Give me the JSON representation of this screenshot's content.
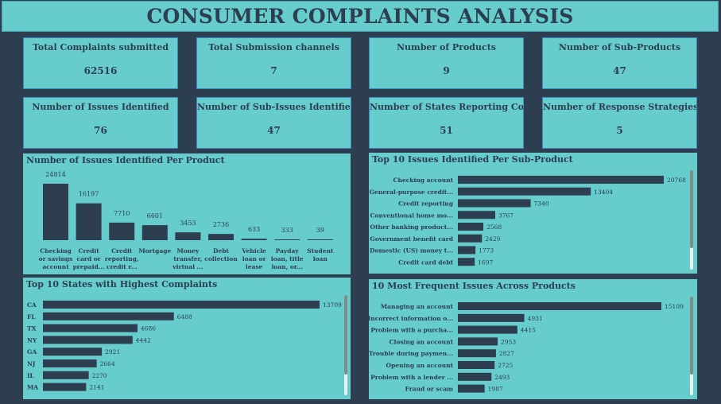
{
  "title": "CONSUMER COMPLAINTS ANALYSIS",
  "colors": {
    "background": "#2d3e50",
    "panel": "#66cccc",
    "bar": "#2d3e50",
    "card_border": "#3f87c0"
  },
  "cards": [
    {
      "label": "Total Complaints submitted",
      "value": "62516"
    },
    {
      "label": "Total Submission channels",
      "value": "7"
    },
    {
      "label": "Number of Products",
      "value": "9"
    },
    {
      "label": "Number of Sub-Products",
      "value": "47"
    },
    {
      "label": "Number of Issues Identified",
      "value": "76"
    },
    {
      "label": "Number of Sub-Issues Identified",
      "value": "47"
    },
    {
      "label": "Number of States Reporting Complaints",
      "value": "51"
    },
    {
      "label": "Number of Response Strategies",
      "value": "5"
    }
  ],
  "chart_data": [
    {
      "type": "bar",
      "orientation": "vertical",
      "title": "Number of Issues Identified Per Product",
      "categories": [
        [
          "Checking",
          "or savings",
          "account"
        ],
        [
          "Credit",
          "card or",
          "prepaid..."
        ],
        [
          "Credit",
          "reporting,",
          "credit r..."
        ],
        [
          "Mortgage"
        ],
        [
          "Money",
          "transfer,",
          "virtual ..."
        ],
        [
          "Debt",
          "collection"
        ],
        [
          "Vehicle",
          "loan or",
          "lease"
        ],
        [
          "Payday",
          "loan, title",
          "loan, or..."
        ],
        [
          "Student",
          "loan"
        ]
      ],
      "values": [
        24814,
        16197,
        7710,
        6601,
        3453,
        2736,
        633,
        333,
        39
      ]
    },
    {
      "type": "bar",
      "orientation": "horizontal",
      "title": "Top 10 Issues Identified Per Sub-Product",
      "categories": [
        "Checking account",
        "General-purpose credit...",
        "Credit reporting",
        "Conventional home mo...",
        "Other banking product...",
        "Government benefit card",
        "Domestic (US) money t...",
        "Credit card debt"
      ],
      "values": [
        20768,
        13404,
        7340,
        3767,
        2568,
        2429,
        1773,
        1697
      ]
    },
    {
      "type": "bar",
      "orientation": "horizontal",
      "title": "Top 10 States with Highest Complaints",
      "categories": [
        "CA",
        "FL",
        "TX",
        "NY",
        "GA",
        "NJ",
        "IL",
        "MA"
      ],
      "values": [
        13709,
        6488,
        4686,
        4442,
        2921,
        2664,
        2270,
        2141
      ]
    },
    {
      "type": "bar",
      "orientation": "horizontal",
      "title": "10 Most Frequent Issues Across Products",
      "categories": [
        "Managing an account",
        "Incorrect information o...",
        "Problem with a purcha...",
        "Closing an account",
        "Trouble during paymen...",
        "Opening an account",
        "Problem with a lender ...",
        "Fraud or scam"
      ],
      "values": [
        15109,
        4931,
        4415,
        2953,
        2827,
        2725,
        2493,
        1987
      ]
    }
  ]
}
